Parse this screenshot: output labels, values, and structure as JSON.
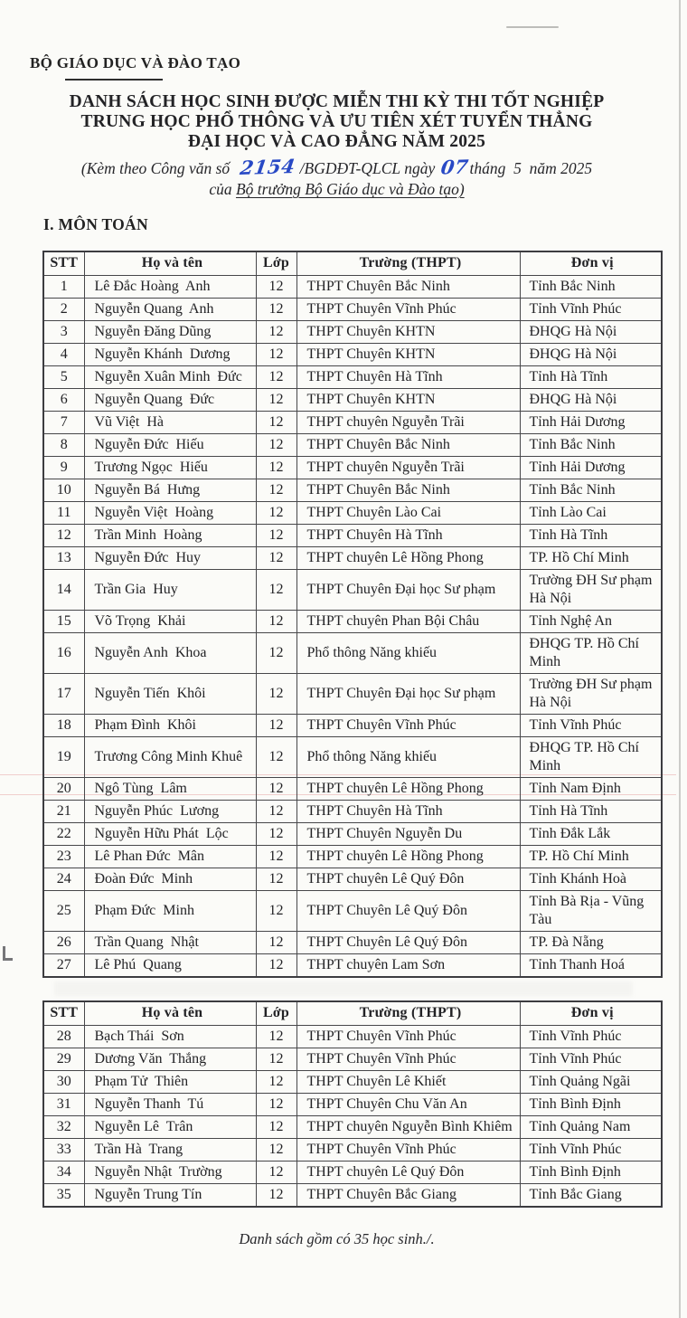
{
  "document": {
    "org_name": "BỘ GIÁO DỤC VÀ ĐÀO TẠO",
    "title_lines": [
      "DANH SÁCH HỌC SINH ĐƯỢC MIỄN THI KỲ THI TỐT NGHIỆP",
      "TRUNG HỌC PHỔ THÔNG VÀ ƯU TIÊN XÉT TUYỂN THẲNG",
      "ĐẠI HỌC VÀ CAO ĐẲNG NĂM 2025"
    ],
    "subtitle": {
      "prefix": "(Kèm theo Công văn số",
      "doc_number": "2154",
      "middle": "/BGDĐT-QLCL ngày",
      "day": "07",
      "suffix": "tháng  5  năm 2025",
      "line2_prefix": "của ",
      "line2_underlined": "Bộ trưởng Bộ Giáo dục và Đào tạo)"
    },
    "section_heading": "I. MÔN TOÁN",
    "footer_note": "Danh sách gồm có 35 học sinh./.",
    "handwriting_color": "#2849c5"
  },
  "table": {
    "columns": [
      "STT",
      "Họ và tên",
      "Lớp",
      "Trường (THPT)",
      "Đơn vị"
    ],
    "rows": [
      {
        "stt": "1",
        "name": "Lê Đắc Hoàng  Anh",
        "grade": "12",
        "school": "THPT Chuyên Bắc Ninh",
        "unit": "Tỉnh Bắc Ninh"
      },
      {
        "stt": "2",
        "name": "Nguyễn Quang  Anh",
        "grade": "12",
        "school": "THPT Chuyên Vĩnh Phúc",
        "unit": "Tỉnh Vĩnh Phúc"
      },
      {
        "stt": "3",
        "name": "Nguyễn Đăng Dũng",
        "grade": "12",
        "school": "THPT Chuyên KHTN",
        "unit": "ĐHQG Hà Nội"
      },
      {
        "stt": "4",
        "name": "Nguyễn Khánh  Dương",
        "grade": "12",
        "school": "THPT Chuyên KHTN",
        "unit": "ĐHQG Hà Nội"
      },
      {
        "stt": "5",
        "name": "Nguyễn Xuân Minh  Đức",
        "grade": "12",
        "school": "THPT Chuyên Hà Tĩnh",
        "unit": "Tỉnh Hà Tĩnh"
      },
      {
        "stt": "6",
        "name": "Nguyễn Quang  Đức",
        "grade": "12",
        "school": "THPT Chuyên KHTN",
        "unit": "ĐHQG Hà Nội"
      },
      {
        "stt": "7",
        "name": "Vũ Việt  Hà",
        "grade": "12",
        "school": "THPT chuyên Nguyễn Trãi",
        "unit": "Tỉnh Hải Dương"
      },
      {
        "stt": "8",
        "name": "Nguyễn Đức  Hiếu",
        "grade": "12",
        "school": "THPT Chuyên Bắc Ninh",
        "unit": "Tỉnh Bắc Ninh"
      },
      {
        "stt": "9",
        "name": "Trương Ngọc  Hiếu",
        "grade": "12",
        "school": "THPT chuyên Nguyễn Trãi",
        "unit": "Tỉnh Hải Dương"
      },
      {
        "stt": "10",
        "name": "Nguyễn Bá  Hưng",
        "grade": "12",
        "school": "THPT Chuyên Bắc Ninh",
        "unit": "Tỉnh Bắc Ninh"
      },
      {
        "stt": "11",
        "name": "Nguyễn Việt  Hoàng",
        "grade": "12",
        "school": "THPT Chuyên Lào Cai",
        "unit": "Tỉnh Lào Cai"
      },
      {
        "stt": "12",
        "name": "Trần Minh  Hoàng",
        "grade": "12",
        "school": "THPT Chuyên Hà Tĩnh",
        "unit": "Tỉnh Hà Tĩnh"
      },
      {
        "stt": "13",
        "name": "Nguyễn Đức  Huy",
        "grade": "12",
        "school": "THPT chuyên Lê Hồng Phong",
        "unit": "TP. Hồ Chí Minh"
      },
      {
        "stt": "14",
        "name": "Trần Gia  Huy",
        "grade": "12",
        "school": "THPT Chuyên Đại học Sư phạm",
        "unit": "Trường ĐH Sư phạm Hà Nội"
      },
      {
        "stt": "15",
        "name": "Võ Trọng  Khải",
        "grade": "12",
        "school": "THPT chuyên Phan Bội Châu",
        "unit": "Tỉnh Nghệ An"
      },
      {
        "stt": "16",
        "name": "Nguyễn Anh  Khoa",
        "grade": "12",
        "school": "Phổ thông Năng khiếu",
        "unit": "ĐHQG TP. Hồ Chí Minh"
      },
      {
        "stt": "17",
        "name": "Nguyễn Tiến  Khôi",
        "grade": "12",
        "school": "THPT Chuyên Đại học Sư phạm",
        "unit": "Trường ĐH Sư phạm Hà Nội"
      },
      {
        "stt": "18",
        "name": "Phạm Đình  Khôi",
        "grade": "12",
        "school": "THPT Chuyên Vĩnh Phúc",
        "unit": "Tỉnh Vĩnh Phúc"
      },
      {
        "stt": "19",
        "name": "Trương Công Minh Khuê",
        "grade": "12",
        "school": "Phổ thông Năng khiếu",
        "unit": "ĐHQG TP. Hồ Chí Minh"
      },
      {
        "stt": "20",
        "name": "Ngô Tùng  Lâm",
        "grade": "12",
        "school": "THPT chuyên Lê Hồng Phong",
        "unit": "Tỉnh Nam Định"
      },
      {
        "stt": "21",
        "name": "Nguyễn Phúc  Lương",
        "grade": "12",
        "school": "THPT Chuyên Hà Tĩnh",
        "unit": "Tỉnh Hà Tĩnh"
      },
      {
        "stt": "22",
        "name": "Nguyễn Hữu Phát  Lộc",
        "grade": "12",
        "school": "THPT Chuyên Nguyễn Du",
        "unit": "Tỉnh Đắk Lắk"
      },
      {
        "stt": "23",
        "name": "Lê Phan Đức  Mân",
        "grade": "12",
        "school": "THPT chuyên Lê Hồng Phong",
        "unit": "TP. Hồ Chí Minh"
      },
      {
        "stt": "24",
        "name": "Đoàn Đức  Minh",
        "grade": "12",
        "school": "THPT chuyên Lê Quý Đôn",
        "unit": "Tỉnh Khánh Hoà"
      },
      {
        "stt": "25",
        "name": "Phạm Đức  Minh",
        "grade": "12",
        "school": "THPT Chuyên Lê Quý Đôn",
        "unit": "Tỉnh Bà Rịa - Vũng Tàu"
      },
      {
        "stt": "26",
        "name": "Trần Quang  Nhật",
        "grade": "12",
        "school": "THPT Chuyên Lê Quý Đôn",
        "unit": "TP. Đà Nẵng"
      },
      {
        "stt": "27",
        "name": "Lê Phú  Quang",
        "grade": "12",
        "school": "THPT chuyên Lam Sơn",
        "unit": "Tỉnh Thanh Hoá"
      },
      {
        "stt": "28",
        "name": "Bạch Thái  Sơn",
        "grade": "12",
        "school": "THPT Chuyên Vĩnh Phúc",
        "unit": "Tỉnh Vĩnh Phúc"
      },
      {
        "stt": "29",
        "name": "Dương Văn  Thắng",
        "grade": "12",
        "school": "THPT Chuyên Vĩnh Phúc",
        "unit": "Tỉnh Vĩnh Phúc"
      },
      {
        "stt": "30",
        "name": "Phạm Tử  Thiên",
        "grade": "12",
        "school": "THPT Chuyên Lê Khiết",
        "unit": "Tỉnh Quảng Ngãi"
      },
      {
        "stt": "31",
        "name": "Nguyễn Thanh  Tú",
        "grade": "12",
        "school": "THPT Chuyên Chu Văn An",
        "unit": "Tỉnh Bình Định"
      },
      {
        "stt": "32",
        "name": "Nguyễn Lê  Trân",
        "grade": "12",
        "school": "THPT chuyên Nguyễn Bình Khiêm",
        "unit": "Tỉnh Quảng Nam"
      },
      {
        "stt": "33",
        "name": "Trần Hà  Trang",
        "grade": "12",
        "school": "THPT Chuyên Vĩnh Phúc",
        "unit": "Tỉnh Vĩnh Phúc"
      },
      {
        "stt": "34",
        "name": "Nguyễn Nhật  Trường",
        "grade": "12",
        "school": "THPT chuyên Lê Quý Đôn",
        "unit": "Tỉnh Bình Định"
      },
      {
        "stt": "35",
        "name": "Nguyễn Trung Tín",
        "grade": "12",
        "school": "THPT Chuyên Bắc Giang",
        "unit": "Tỉnh Bắc Giang"
      }
    ]
  }
}
